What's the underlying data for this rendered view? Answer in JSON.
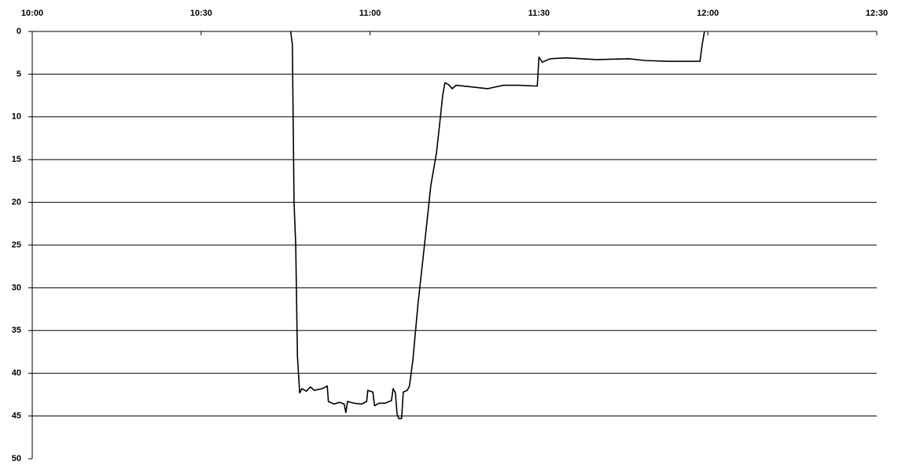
{
  "chart_data": {
    "type": "line",
    "x_units": "minutes since midnight",
    "xlim": [
      600,
      750
    ],
    "xticks": [
      {
        "value": 600,
        "label": "10:00"
      },
      {
        "value": 630,
        "label": "10:30"
      },
      {
        "value": 660,
        "label": "11:00"
      },
      {
        "value": 690,
        "label": "11:30"
      },
      {
        "value": 720,
        "label": "12:00"
      },
      {
        "value": 750,
        "label": "12:30"
      }
    ],
    "ylim": [
      0,
      50
    ],
    "y_inverted": true,
    "yticks": [
      0,
      5,
      10,
      15,
      20,
      25,
      30,
      35,
      40,
      45,
      50
    ],
    "grid": true,
    "series": [
      {
        "color": "#000000",
        "x": [
          645.9,
          646.2,
          646.5,
          646.8,
          647.1,
          647.5,
          647.9,
          648.7,
          649.4,
          650.1,
          651.5,
          652.4,
          652.6,
          653.6,
          654.6,
          655.4,
          655.7,
          656.0,
          657.1,
          658.5,
          659.4,
          659.6,
          660.5,
          660.8,
          661.6,
          662.7,
          663.8,
          664.1,
          664.5,
          664.8,
          665.1,
          665.6,
          665.9,
          666.6,
          667.0,
          667.6,
          668.5,
          669.7,
          670.8,
          671.8,
          672.5,
          672.9,
          673.3,
          673.9,
          674.6,
          675.3,
          678.1,
          680.9,
          683.7,
          686.5,
          689.7,
          690.0,
          690.6,
          692.0,
          694.8,
          700.4,
          706.0,
          708.8,
          713.0,
          718.6,
          719.0,
          719.4
        ],
        "values": [
          0,
          1.5,
          20,
          25,
          38,
          42.3,
          41.8,
          42.1,
          41.6,
          42,
          41.8,
          41.5,
          43.3,
          43.6,
          43.4,
          43.6,
          44.6,
          43.3,
          43.5,
          43.6,
          43.3,
          42,
          42.2,
          43.8,
          43.5,
          43.5,
          43.2,
          41.8,
          42.3,
          44.8,
          45.3,
          45.3,
          42.2,
          42,
          41.5,
          38.5,
          32,
          24.8,
          18,
          14.2,
          10,
          7.5,
          6,
          6.2,
          6.7,
          6.3,
          6.5,
          6.7,
          6.3,
          6.3,
          6.4,
          3,
          3.6,
          3.2,
          3.1,
          3.3,
          3.2,
          3.4,
          3.5,
          3.5,
          1.5,
          0
        ]
      }
    ]
  }
}
